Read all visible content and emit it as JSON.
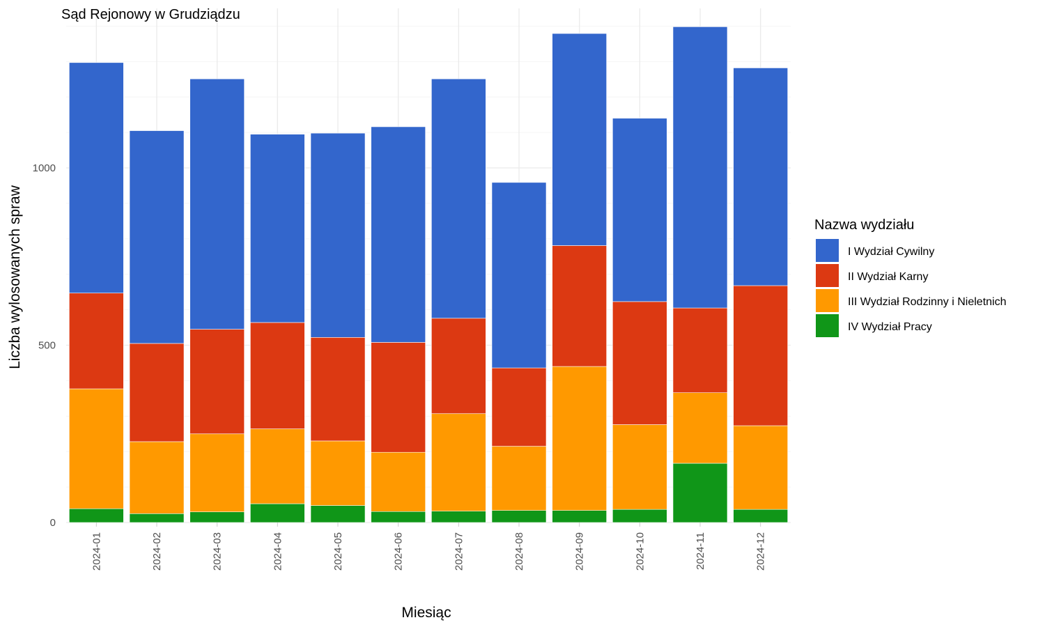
{
  "chart_data": {
    "type": "bar",
    "stacked": true,
    "title": "Sąd Rejonowy w Grudziądzu",
    "xlabel": "Miesiąc",
    "ylabel": "Liczba wylosowanych spraw",
    "ylim": [
      0,
      1400
    ],
    "yticks": [
      0,
      500,
      1000
    ],
    "grid": true,
    "legend_position": "right",
    "legend_title": "Nazwa wydziału",
    "categories": [
      "2024-01",
      "2024-02",
      "2024-03",
      "2024-04",
      "2024-05",
      "2024-06",
      "2024-07",
      "2024-08",
      "2024-09",
      "2024-10",
      "2024-11",
      "2024-12"
    ],
    "series": [
      {
        "name": "IV Wydział Pracy",
        "color": "#109618",
        "values": [
          39,
          25,
          30,
          53,
          48,
          31,
          32,
          34,
          34,
          37,
          167,
          37
        ]
      },
      {
        "name": "III Wydział Rodzinny i Nieletnich",
        "color": "#ff9900",
        "values": [
          338,
          203,
          220,
          211,
          182,
          167,
          275,
          181,
          406,
          239,
          199,
          236
        ]
      },
      {
        "name": "II Wydział Karny",
        "color": "#dc3912",
        "values": [
          270,
          277,
          295,
          300,
          292,
          310,
          269,
          221,
          341,
          347,
          239,
          395
        ]
      },
      {
        "name": "I Wydział Cywilny",
        "color": "#3366cc",
        "values": [
          650,
          600,
          706,
          531,
          576,
          608,
          675,
          523,
          598,
          517,
          793,
          614
        ]
      }
    ],
    "legend_order": [
      "I Wydział Cywilny",
      "II Wydział Karny",
      "III Wydział Rodzinny i Nieletnich",
      "IV Wydział Pracy"
    ]
  }
}
